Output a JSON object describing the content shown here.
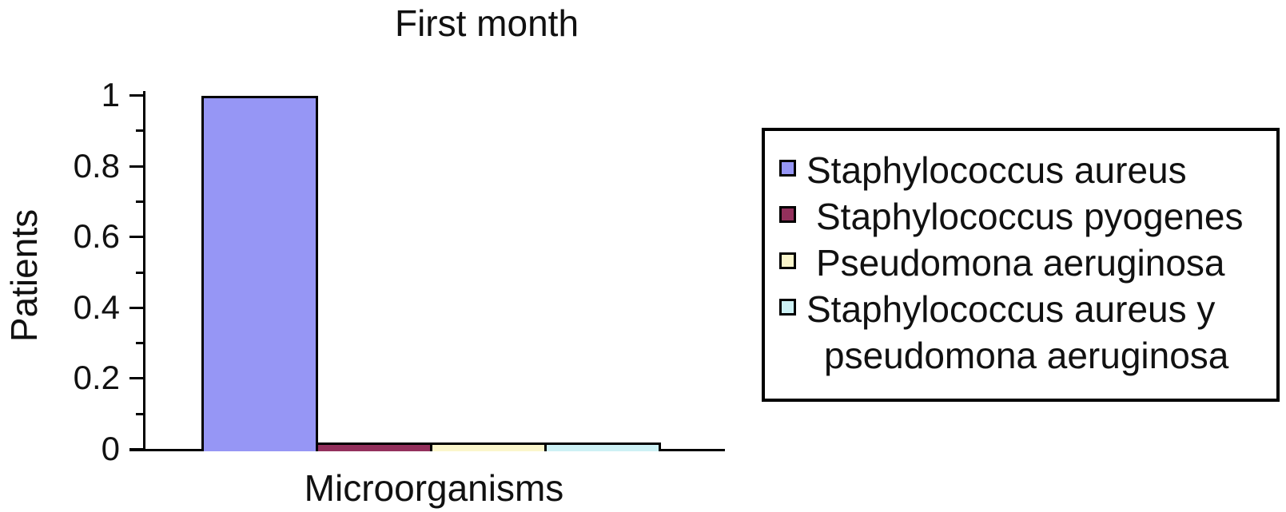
{
  "chart_data": {
    "type": "bar",
    "title": "First month",
    "xlabel": "Microorganisms",
    "ylabel": "Patients",
    "ylim": [
      0,
      1
    ],
    "yticks": [
      0,
      0.2,
      0.4,
      0.6,
      0.8,
      1
    ],
    "ytick_labels": [
      "0",
      "0.2",
      "0.4",
      "0.6",
      "0.8",
      "1"
    ],
    "minor_ticks": true,
    "grid": false,
    "legend_position": "right",
    "categories": [
      "Staphylococcus aureus",
      "Staphylococcus pyogenes",
      "Pseudomona aeruginosa",
      "Staphylococcus aureus y pseudomona aeruginosa"
    ],
    "values": [
      1,
      0.02,
      0.02,
      0.02
    ],
    "colors": [
      "#9696F5",
      "#93305C",
      "#FBF6CC",
      "#CDF1F5"
    ],
    "axis_color": "#000000",
    "background": "#FFFFFF"
  }
}
